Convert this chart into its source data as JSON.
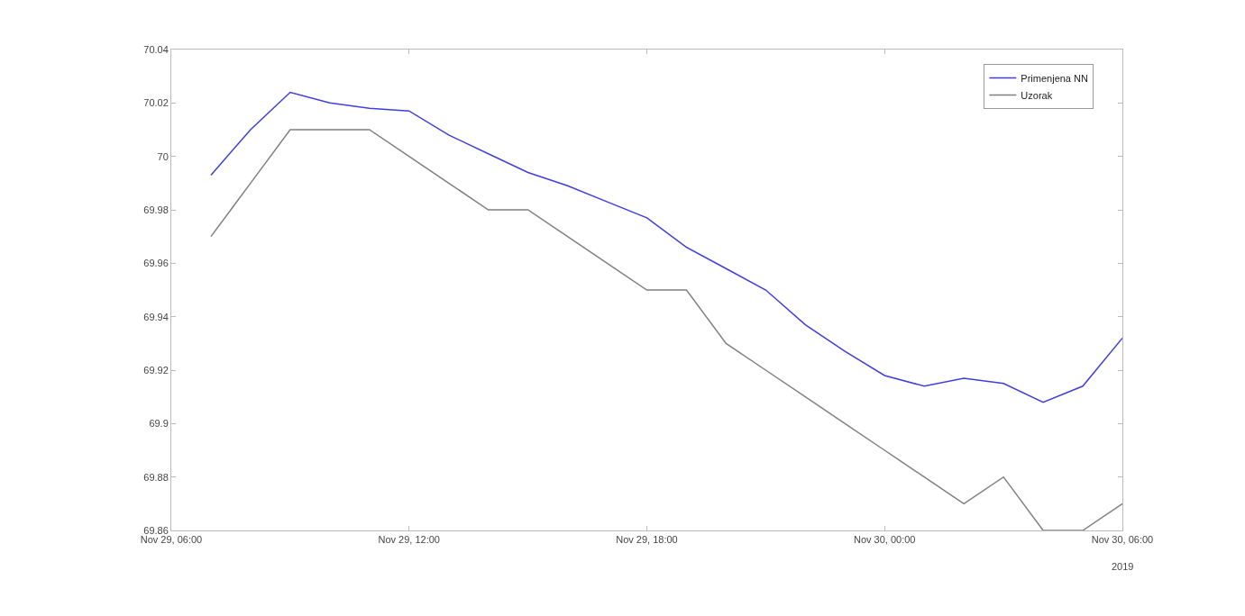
{
  "chart_data": {
    "type": "line",
    "x": [
      "2019-11-29T07:00",
      "2019-11-29T08:00",
      "2019-11-29T09:00",
      "2019-11-29T10:00",
      "2019-11-29T11:00",
      "2019-11-29T12:00",
      "2019-11-29T13:00",
      "2019-11-29T14:00",
      "2019-11-29T15:00",
      "2019-11-29T16:00",
      "2019-11-29T17:00",
      "2019-11-29T18:00",
      "2019-11-29T19:00",
      "2019-11-29T20:00",
      "2019-11-29T21:00",
      "2019-11-29T22:00",
      "2019-11-29T23:00",
      "2019-11-30T00:00",
      "2019-11-30T01:00",
      "2019-11-30T02:00",
      "2019-11-30T03:00",
      "2019-11-30T04:00",
      "2019-11-30T05:00",
      "2019-11-30T06:00"
    ],
    "series": [
      {
        "name": "Primenjena NN",
        "color": "#3f3fe0",
        "values": [
          69.993,
          70.01,
          70.024,
          70.02,
          70.018,
          70.017,
          70.008,
          70.001,
          69.994,
          69.989,
          69.983,
          69.977,
          69.966,
          69.958,
          69.95,
          69.937,
          69.927,
          69.918,
          69.914,
          69.917,
          69.915,
          69.908,
          69.914,
          69.932
        ]
      },
      {
        "name": "Uzorak",
        "color": "#808080",
        "values": [
          69.97,
          69.99,
          70.01,
          70.01,
          70.01,
          70.0,
          69.99,
          69.98,
          69.98,
          69.97,
          69.96,
          69.95,
          69.95,
          69.93,
          69.92,
          69.91,
          69.9,
          69.89,
          69.88,
          69.87,
          69.88,
          69.86,
          69.86,
          69.87
        ]
      }
    ],
    "xlim": [
      "2019-11-29T06:00",
      "2019-11-30T06:00"
    ],
    "xticks": [
      {
        "value": "2019-11-29T06:00",
        "label": "Nov 29, 06:00"
      },
      {
        "value": "2019-11-29T12:00",
        "label": "Nov 29, 12:00"
      },
      {
        "value": "2019-11-29T18:00",
        "label": "Nov 29, 18:00"
      },
      {
        "value": "2019-11-30T00:00",
        "label": "Nov 30, 00:00"
      },
      {
        "value": "2019-11-30T06:00",
        "label": "Nov 30, 06:00"
      }
    ],
    "ylim": [
      69.86,
      70.04
    ],
    "yticks": [
      69.86,
      69.88,
      69.9,
      69.92,
      69.94,
      69.96,
      69.98,
      70,
      70.02,
      70.04
    ],
    "annotations": [
      "2019"
    ],
    "legend": "top right",
    "line_style": "solid"
  }
}
